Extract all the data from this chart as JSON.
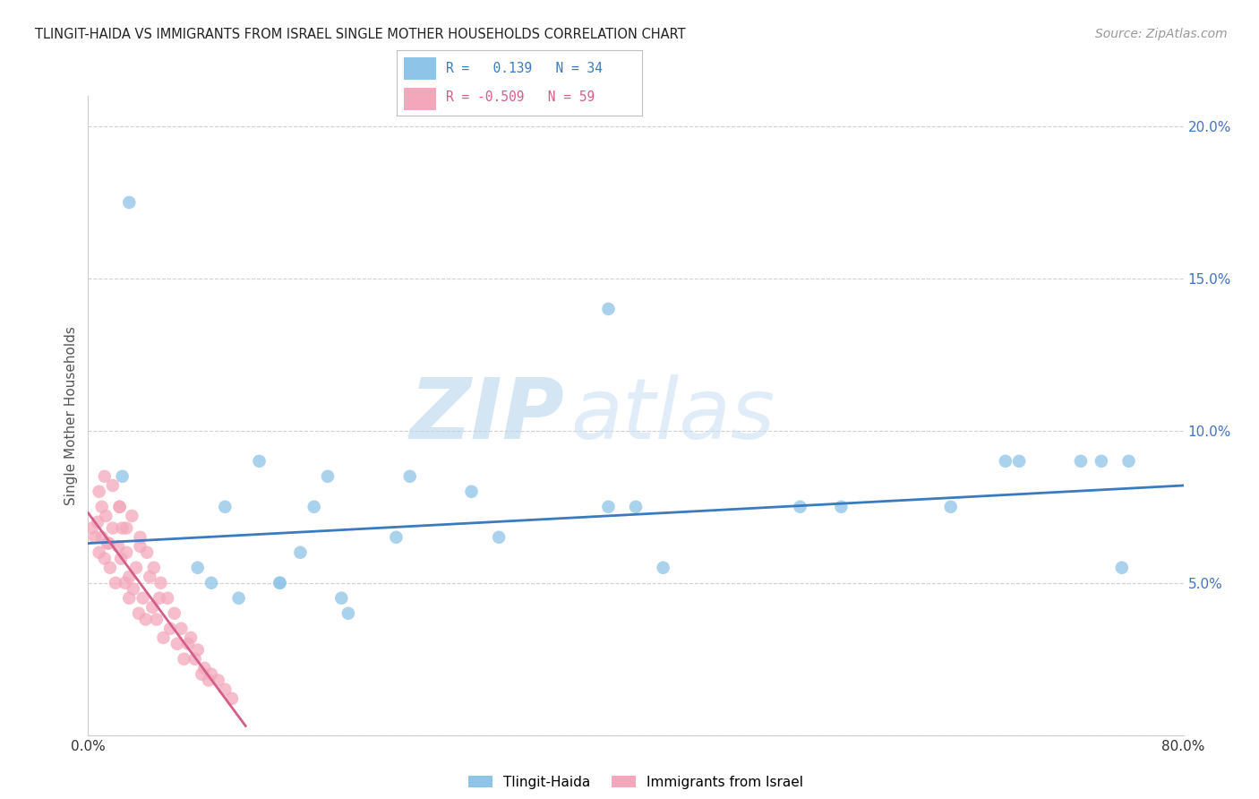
{
  "title": "TLINGIT-HAIDA VS IMMIGRANTS FROM ISRAEL SINGLE MOTHER HOUSEHOLDS CORRELATION CHART",
  "source": "Source: ZipAtlas.com",
  "ylabel": "Single Mother Households",
  "xlim": [
    0.0,
    0.8
  ],
  "ylim": [
    0.0,
    0.21
  ],
  "yticks": [
    0.0,
    0.05,
    0.1,
    0.15,
    0.2
  ],
  "ytick_labels": [
    "",
    "5.0%",
    "10.0%",
    "15.0%",
    "20.0%"
  ],
  "xticks": [
    0.0,
    0.1,
    0.2,
    0.3,
    0.4,
    0.5,
    0.6,
    0.7,
    0.8
  ],
  "xtick_labels": [
    "0.0%",
    "",
    "",
    "",
    "",
    "",
    "",
    "",
    "80.0%"
  ],
  "color_blue": "#8ec4e8",
  "color_pink": "#f4a7bb",
  "line_color_blue": "#3a7abf",
  "line_color_pink": "#d45e8a",
  "watermark_zip": "ZIP",
  "watermark_atlas": "atlas",
  "blue_x": [
    0.025,
    0.08,
    0.1,
    0.125,
    0.14,
    0.155,
    0.165,
    0.175,
    0.185,
    0.225,
    0.235,
    0.28,
    0.3,
    0.38,
    0.4,
    0.42,
    0.52,
    0.55,
    0.63,
    0.67,
    0.68,
    0.725,
    0.74,
    0.755,
    0.76,
    0.38,
    0.03,
    0.09,
    0.11,
    0.14,
    0.19
  ],
  "blue_y": [
    0.085,
    0.055,
    0.075,
    0.09,
    0.05,
    0.06,
    0.075,
    0.085,
    0.045,
    0.065,
    0.085,
    0.08,
    0.065,
    0.075,
    0.075,
    0.055,
    0.075,
    0.075,
    0.075,
    0.09,
    0.09,
    0.09,
    0.09,
    0.055,
    0.09,
    0.14,
    0.175,
    0.05,
    0.045,
    0.05,
    0.04
  ],
  "pink_x": [
    0.003,
    0.005,
    0.007,
    0.008,
    0.01,
    0.01,
    0.012,
    0.013,
    0.014,
    0.015,
    0.016,
    0.018,
    0.02,
    0.022,
    0.023,
    0.024,
    0.025,
    0.027,
    0.028,
    0.03,
    0.03,
    0.033,
    0.035,
    0.037,
    0.038,
    0.04,
    0.042,
    0.045,
    0.047,
    0.05,
    0.052,
    0.055,
    0.06,
    0.065,
    0.07,
    0.075,
    0.08,
    0.085,
    0.09,
    0.095,
    0.1,
    0.105,
    0.008,
    0.012,
    0.018,
    0.023,
    0.028,
    0.032,
    0.038,
    0.043,
    0.048,
    0.053,
    0.058,
    0.063,
    0.068,
    0.073,
    0.078,
    0.083,
    0.088
  ],
  "pink_y": [
    0.068,
    0.065,
    0.07,
    0.06,
    0.075,
    0.065,
    0.058,
    0.072,
    0.063,
    0.063,
    0.055,
    0.068,
    0.05,
    0.062,
    0.075,
    0.058,
    0.068,
    0.05,
    0.06,
    0.045,
    0.052,
    0.048,
    0.055,
    0.04,
    0.062,
    0.045,
    0.038,
    0.052,
    0.042,
    0.038,
    0.045,
    0.032,
    0.035,
    0.03,
    0.025,
    0.032,
    0.028,
    0.022,
    0.02,
    0.018,
    0.015,
    0.012,
    0.08,
    0.085,
    0.082,
    0.075,
    0.068,
    0.072,
    0.065,
    0.06,
    0.055,
    0.05,
    0.045,
    0.04,
    0.035,
    0.03,
    0.025,
    0.02,
    0.018
  ],
  "blue_line_x": [
    0.0,
    0.8
  ],
  "blue_line_y": [
    0.063,
    0.082
  ],
  "pink_line_x": [
    0.0,
    0.115
  ],
  "pink_line_y": [
    0.073,
    0.003
  ]
}
